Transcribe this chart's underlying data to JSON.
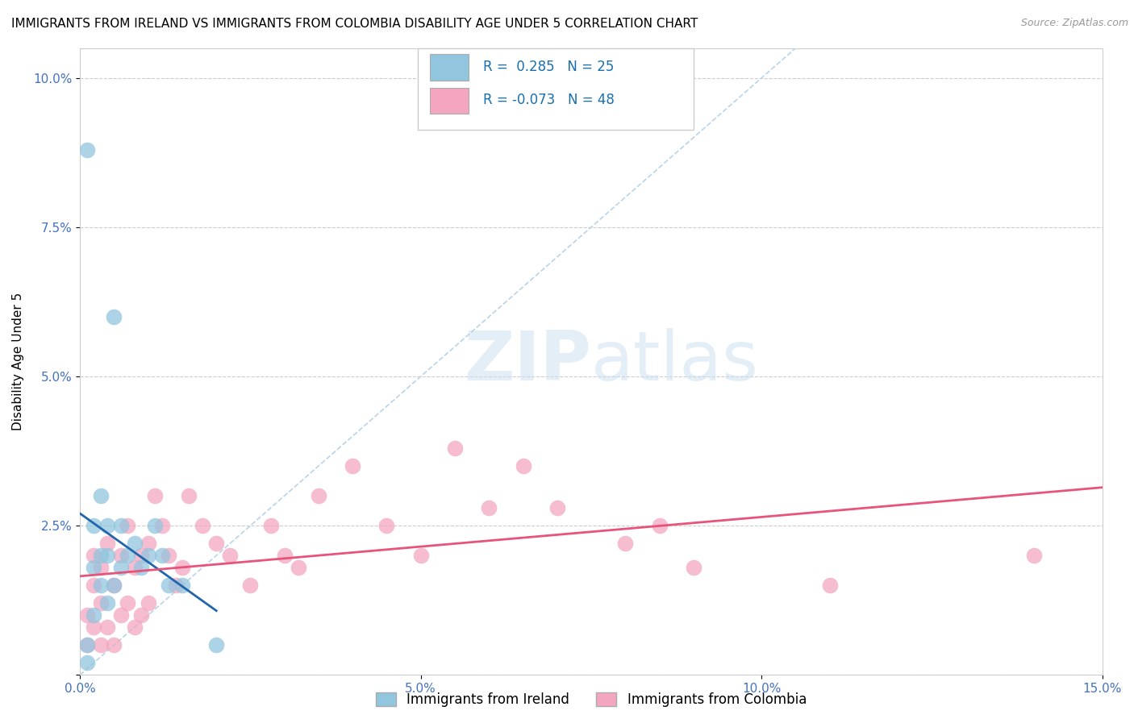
{
  "title": "IMMIGRANTS FROM IRELAND VS IMMIGRANTS FROM COLOMBIA DISABILITY AGE UNDER 5 CORRELATION CHART",
  "source": "Source: ZipAtlas.com",
  "ylabel": "Disability Age Under 5",
  "xlim": [
    0.0,
    0.15
  ],
  "ylim": [
    0.0,
    0.105
  ],
  "xticks": [
    0.0,
    0.05,
    0.1,
    0.15
  ],
  "xtick_labels": [
    "0.0%",
    "5.0%",
    "10.0%",
    "15.0%"
  ],
  "yticks": [
    0.0,
    0.025,
    0.05,
    0.075,
    0.1
  ],
  "ytick_labels": [
    "",
    "2.5%",
    "5.0%",
    "7.5%",
    "10.0%"
  ],
  "ireland_color": "#92c5de",
  "colombia_color": "#f4a6c0",
  "regression_ireland_color": "#2166ac",
  "regression_colombia_color": "#e8537a",
  "ireland_R": 0.285,
  "ireland_N": 25,
  "colombia_R": -0.073,
  "colombia_N": 48,
  "legend_label_ireland": "Immigrants from Ireland",
  "legend_label_colombia": "Immigrants from Colombia",
  "background_color": "#ffffff",
  "grid_color": "#cccccc",
  "title_fontsize": 11,
  "axis_label_fontsize": 11,
  "tick_fontsize": 11,
  "tick_color": "#4472c4",
  "legend_fontsize": 12,
  "diag_color": "#b8d4ea",
  "ireland_x": [
    0.001,
    0.001,
    0.001,
    0.002,
    0.002,
    0.002,
    0.003,
    0.003,
    0.003,
    0.004,
    0.004,
    0.004,
    0.005,
    0.005,
    0.006,
    0.006,
    0.007,
    0.008,
    0.009,
    0.01,
    0.011,
    0.012,
    0.013,
    0.015,
    0.02
  ],
  "ireland_y": [
    0.088,
    0.005,
    0.002,
    0.025,
    0.018,
    0.01,
    0.03,
    0.02,
    0.015,
    0.025,
    0.02,
    0.012,
    0.06,
    0.015,
    0.025,
    0.018,
    0.02,
    0.022,
    0.018,
    0.02,
    0.025,
    0.02,
    0.015,
    0.015,
    0.005
  ],
  "colombia_x": [
    0.001,
    0.001,
    0.002,
    0.002,
    0.002,
    0.003,
    0.003,
    0.003,
    0.004,
    0.004,
    0.005,
    0.005,
    0.006,
    0.006,
    0.007,
    0.007,
    0.008,
    0.008,
    0.009,
    0.009,
    0.01,
    0.01,
    0.011,
    0.012,
    0.013,
    0.014,
    0.015,
    0.016,
    0.018,
    0.02,
    0.022,
    0.025,
    0.028,
    0.03,
    0.032,
    0.035,
    0.04,
    0.045,
    0.05,
    0.055,
    0.06,
    0.065,
    0.07,
    0.08,
    0.085,
    0.09,
    0.11,
    0.14
  ],
  "colombia_y": [
    0.01,
    0.005,
    0.02,
    0.015,
    0.008,
    0.018,
    0.012,
    0.005,
    0.022,
    0.008,
    0.015,
    0.005,
    0.02,
    0.01,
    0.025,
    0.012,
    0.018,
    0.008,
    0.02,
    0.01,
    0.022,
    0.012,
    0.03,
    0.025,
    0.02,
    0.015,
    0.018,
    0.03,
    0.025,
    0.022,
    0.02,
    0.015,
    0.025,
    0.02,
    0.018,
    0.03,
    0.035,
    0.025,
    0.02,
    0.038,
    0.028,
    0.035,
    0.028,
    0.022,
    0.025,
    0.018,
    0.015,
    0.02
  ]
}
